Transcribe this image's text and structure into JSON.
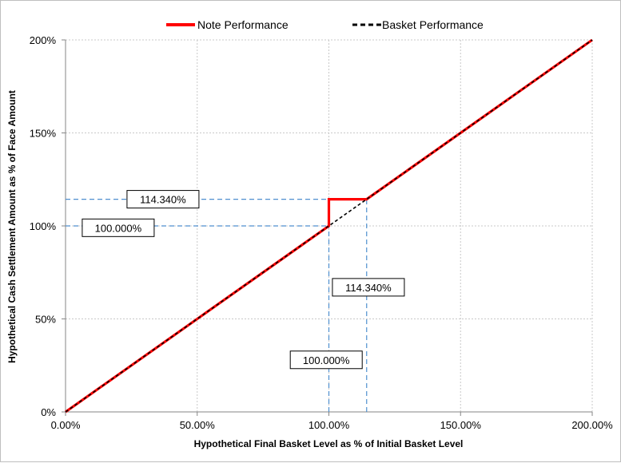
{
  "chart_data": {
    "type": "line",
    "title": "",
    "xlabel": "Hypothetical Final Basket Level as % of Initial Basket Level",
    "ylabel": "Hypothetical Cash Settlement Amount as % of Face Amount",
    "xlim": [
      0,
      200
    ],
    "ylim": [
      0,
      200
    ],
    "x_ticks": [
      0,
      50,
      100,
      150,
      200
    ],
    "x_tick_labels": [
      "0.00%",
      "50.00%",
      "100.00%",
      "150.00%",
      "200.00%"
    ],
    "y_ticks": [
      0,
      50,
      100,
      150,
      200
    ],
    "y_tick_labels": [
      "0%",
      "50%",
      "100%",
      "150%",
      "200%"
    ],
    "grid": true,
    "legend_position": "top-center",
    "series": [
      {
        "name": "Note Performance",
        "color": "#ff0000",
        "style": "solid",
        "x": [
          0,
          100,
          100,
          114.34,
          200
        ],
        "y": [
          0,
          100,
          114.34,
          114.34,
          200
        ]
      },
      {
        "name": "Basket Performance",
        "color": "#000000",
        "style": "dashed",
        "x": [
          0,
          200
        ],
        "y": [
          0,
          200
        ]
      }
    ],
    "reference_lines": [
      {
        "orientation": "horizontal",
        "value": 114.34,
        "from": 0,
        "to": 114.34,
        "color": "#4f8fcf"
      },
      {
        "orientation": "horizontal",
        "value": 100,
        "from": 0,
        "to": 100,
        "color": "#4f8fcf"
      },
      {
        "orientation": "vertical",
        "value": 100,
        "from": 0,
        "to": 114.34,
        "color": "#4f8fcf"
      },
      {
        "orientation": "vertical",
        "value": 114.34,
        "from": 0,
        "to": 114.34,
        "color": "#4f8fcf"
      }
    ],
    "annotations": [
      {
        "text": "114.340%",
        "x": 37,
        "y": 114.34
      },
      {
        "text": "100.000%",
        "x": 20,
        "y": 99
      },
      {
        "text": "114.340%",
        "x": 115,
        "y": 67
      },
      {
        "text": "100.000%",
        "x": 99,
        "y": 28
      }
    ]
  }
}
